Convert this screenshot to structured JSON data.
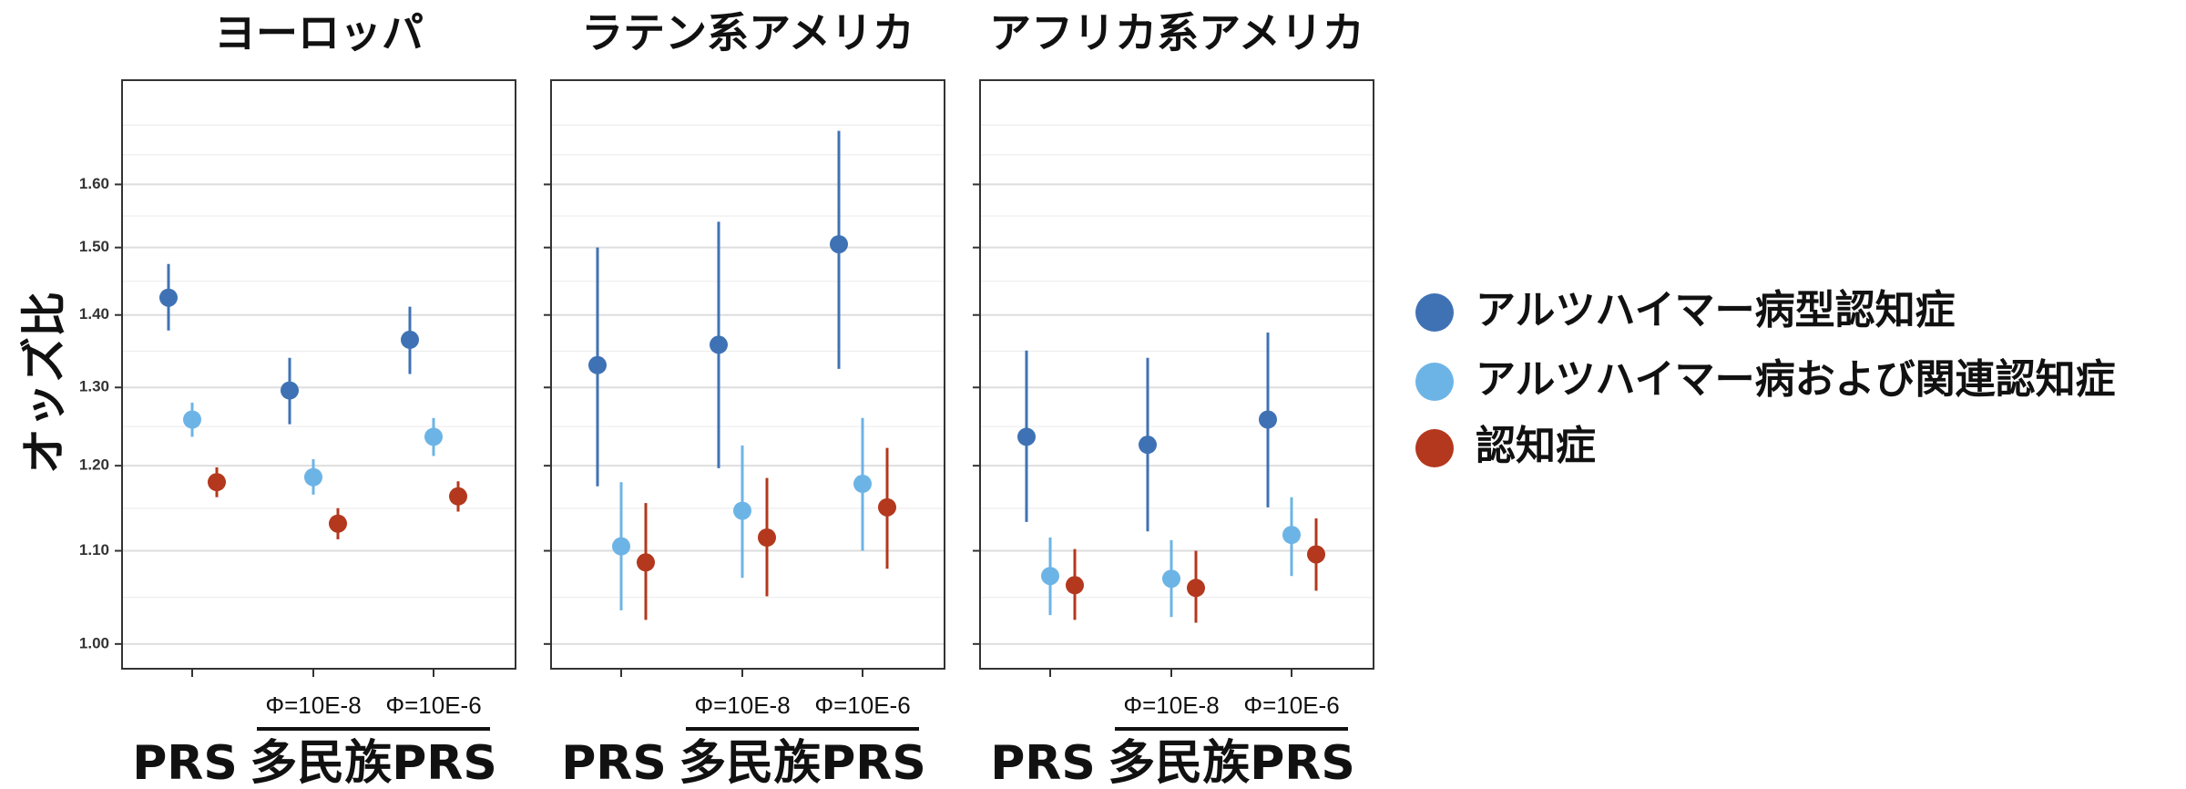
{
  "chart_data": {
    "type": "scatter",
    "subtype": "point-range (odds ratio with confidence interval)",
    "ylabel": "オッズ比",
    "y_ticks": [
      "1.00",
      "1.10",
      "1.20",
      "1.30",
      "1.40",
      "1.50",
      "1.60"
    ],
    "y_scale": "log",
    "ylim": [
      0.975,
      1.78
    ],
    "grid": true,
    "legend_position": "right",
    "x_groups": {
      "single": "PRS",
      "multi_label": "多民族PRS",
      "multi_sublabels": [
        "Φ=10E-8",
        "Φ=10E-6"
      ]
    },
    "series": [
      {
        "name": "アルツハイマー病型認知症",
        "color": "#3f72b4"
      },
      {
        "name": "アルツハイマー病および関連認知症",
        "color": "#6db4e6"
      },
      {
        "name": "認知症",
        "color": "#b3381e"
      }
    ],
    "panels": [
      {
        "title": "ヨーロッパ",
        "points": [
          [
            [
              1.425,
              1.378,
              1.475
            ],
            [
              1.258,
              1.236,
              1.28
            ],
            [
              1.18,
              1.162,
              1.198
            ]
          ],
          [
            [
              1.296,
              1.252,
              1.34
            ],
            [
              1.186,
              1.165,
              1.208
            ],
            [
              1.131,
              1.113,
              1.149
            ]
          ],
          [
            [
              1.365,
              1.318,
              1.412
            ],
            [
              1.236,
              1.212,
              1.26
            ],
            [
              1.163,
              1.145,
              1.181
            ]
          ]
        ]
      },
      {
        "title": "ラテン系アメリカ",
        "points": [
          [
            [
              1.33,
              1.175,
              1.5
            ],
            [
              1.105,
              1.035,
              1.18
            ],
            [
              1.087,
              1.025,
              1.155
            ]
          ],
          [
            [
              1.358,
              1.197,
              1.54
            ],
            [
              1.146,
              1.07,
              1.225
            ],
            [
              1.115,
              1.05,
              1.185
            ]
          ],
          [
            [
              1.505,
              1.325,
              1.69
            ],
            [
              1.178,
              1.1,
              1.26
            ],
            [
              1.15,
              1.08,
              1.222
            ]
          ]
        ]
      },
      {
        "title": "アフリカ系アメリカ",
        "points": [
          [
            [
              1.236,
              1.133,
              1.35
            ],
            [
              1.072,
              1.03,
              1.115
            ],
            [
              1.062,
              1.025,
              1.102
            ]
          ],
          [
            [
              1.226,
              1.122,
              1.34
            ],
            [
              1.069,
              1.028,
              1.112
            ],
            [
              1.059,
              1.022,
              1.1
            ]
          ],
          [
            [
              1.258,
              1.15,
              1.375
            ],
            [
              1.118,
              1.072,
              1.162
            ],
            [
              1.096,
              1.056,
              1.137
            ]
          ]
        ]
      }
    ]
  }
}
